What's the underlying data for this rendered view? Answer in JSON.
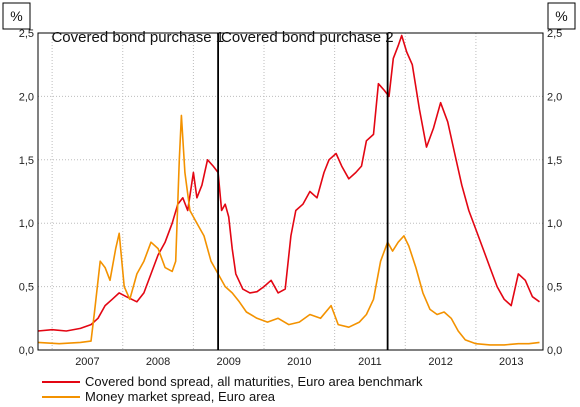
{
  "chart_data": {
    "type": "line",
    "y_unit_left": "%",
    "y_unit_right": "%",
    "xlim": [
      2006.3,
      2013.45
    ],
    "ylim": [
      0,
      2.5
    ],
    "yticks": [
      0,
      0.5,
      1.0,
      1.5,
      2.0,
      2.5
    ],
    "ytick_labels": [
      "0,0",
      "0,5",
      "1,0",
      "1,5",
      "2,0",
      "2,5"
    ],
    "xtick_labels": [
      {
        "label": "2007",
        "x": 2007.0
      },
      {
        "label": "2008",
        "x": 2008.0
      },
      {
        "label": "2009",
        "x": 2009.0
      },
      {
        "label": "2010",
        "x": 2010.0
      },
      {
        "label": "2011",
        "x": 2011.0
      },
      {
        "label": "2012",
        "x": 2012.0
      },
      {
        "label": "2013",
        "x": 2013.0
      }
    ],
    "grid": true,
    "legend_position": "bottom",
    "vertical_markers": [
      {
        "x": 2008.85,
        "label": "Covered bond purchase 1"
      },
      {
        "x": 2011.25,
        "label": "Covered bond purchase 2"
      }
    ],
    "series": [
      {
        "name": "Covered bond spread, all maturities, Euro area benchmark",
        "color": "#e30613",
        "points": [
          [
            2006.3,
            0.15
          ],
          [
            2006.5,
            0.16
          ],
          [
            2006.7,
            0.15
          ],
          [
            2006.9,
            0.17
          ],
          [
            2007.05,
            0.2
          ],
          [
            2007.15,
            0.25
          ],
          [
            2007.25,
            0.35
          ],
          [
            2007.35,
            0.4
          ],
          [
            2007.45,
            0.45
          ],
          [
            2007.55,
            0.42
          ],
          [
            2007.7,
            0.38
          ],
          [
            2007.8,
            0.45
          ],
          [
            2007.9,
            0.6
          ],
          [
            2008.0,
            0.75
          ],
          [
            2008.1,
            0.85
          ],
          [
            2008.2,
            1.0
          ],
          [
            2008.28,
            1.15
          ],
          [
            2008.35,
            1.2
          ],
          [
            2008.42,
            1.1
          ],
          [
            2008.5,
            1.4
          ],
          [
            2008.55,
            1.2
          ],
          [
            2008.62,
            1.3
          ],
          [
            2008.7,
            1.5
          ],
          [
            2008.78,
            1.45
          ],
          [
            2008.85,
            1.4
          ],
          [
            2008.9,
            1.1
          ],
          [
            2008.95,
            1.15
          ],
          [
            2009.0,
            1.05
          ],
          [
            2009.05,
            0.8
          ],
          [
            2009.1,
            0.6
          ],
          [
            2009.2,
            0.48
          ],
          [
            2009.3,
            0.45
          ],
          [
            2009.4,
            0.46
          ],
          [
            2009.5,
            0.5
          ],
          [
            2009.6,
            0.55
          ],
          [
            2009.7,
            0.45
          ],
          [
            2009.8,
            0.48
          ],
          [
            2009.88,
            0.9
          ],
          [
            2009.95,
            1.1
          ],
          [
            2010.05,
            1.15
          ],
          [
            2010.15,
            1.25
          ],
          [
            2010.25,
            1.2
          ],
          [
            2010.35,
            1.4
          ],
          [
            2010.42,
            1.5
          ],
          [
            2010.52,
            1.55
          ],
          [
            2010.6,
            1.45
          ],
          [
            2010.7,
            1.35
          ],
          [
            2010.8,
            1.4
          ],
          [
            2010.88,
            1.45
          ],
          [
            2010.95,
            1.65
          ],
          [
            2011.05,
            1.7
          ],
          [
            2011.12,
            2.1
          ],
          [
            2011.2,
            2.05
          ],
          [
            2011.27,
            2.0
          ],
          [
            2011.33,
            2.3
          ],
          [
            2011.4,
            2.4
          ],
          [
            2011.45,
            2.48
          ],
          [
            2011.52,
            2.35
          ],
          [
            2011.6,
            2.25
          ],
          [
            2011.7,
            1.9
          ],
          [
            2011.8,
            1.6
          ],
          [
            2011.9,
            1.75
          ],
          [
            2012.0,
            1.95
          ],
          [
            2012.1,
            1.8
          ],
          [
            2012.2,
            1.55
          ],
          [
            2012.3,
            1.3
          ],
          [
            2012.4,
            1.1
          ],
          [
            2012.5,
            0.95
          ],
          [
            2012.6,
            0.8
          ],
          [
            2012.7,
            0.65
          ],
          [
            2012.8,
            0.5
          ],
          [
            2012.9,
            0.4
          ],
          [
            2013.0,
            0.35
          ],
          [
            2013.1,
            0.6
          ],
          [
            2013.2,
            0.55
          ],
          [
            2013.3,
            0.42
          ],
          [
            2013.4,
            0.38
          ]
        ]
      },
      {
        "name": "Money market spread, Euro area",
        "color": "#f39200",
        "points": [
          [
            2006.3,
            0.06
          ],
          [
            2006.6,
            0.05
          ],
          [
            2006.9,
            0.06
          ],
          [
            2007.05,
            0.07
          ],
          [
            2007.1,
            0.3
          ],
          [
            2007.18,
            0.7
          ],
          [
            2007.25,
            0.65
          ],
          [
            2007.32,
            0.55
          ],
          [
            2007.4,
            0.8
          ],
          [
            2007.45,
            0.92
          ],
          [
            2007.52,
            0.5
          ],
          [
            2007.6,
            0.4
          ],
          [
            2007.7,
            0.6
          ],
          [
            2007.8,
            0.7
          ],
          [
            2007.9,
            0.85
          ],
          [
            2008.0,
            0.8
          ],
          [
            2008.1,
            0.65
          ],
          [
            2008.2,
            0.62
          ],
          [
            2008.25,
            0.7
          ],
          [
            2008.3,
            1.5
          ],
          [
            2008.33,
            1.85
          ],
          [
            2008.38,
            1.4
          ],
          [
            2008.45,
            1.1
          ],
          [
            2008.55,
            1.0
          ],
          [
            2008.65,
            0.9
          ],
          [
            2008.75,
            0.7
          ],
          [
            2008.85,
            0.6
          ],
          [
            2008.95,
            0.5
          ],
          [
            2009.05,
            0.45
          ],
          [
            2009.15,
            0.38
          ],
          [
            2009.25,
            0.3
          ],
          [
            2009.4,
            0.25
          ],
          [
            2009.55,
            0.22
          ],
          [
            2009.7,
            0.25
          ],
          [
            2009.85,
            0.2
          ],
          [
            2010.0,
            0.22
          ],
          [
            2010.15,
            0.28
          ],
          [
            2010.3,
            0.25
          ],
          [
            2010.45,
            0.35
          ],
          [
            2010.55,
            0.2
          ],
          [
            2010.7,
            0.18
          ],
          [
            2010.85,
            0.22
          ],
          [
            2010.95,
            0.28
          ],
          [
            2011.05,
            0.4
          ],
          [
            2011.15,
            0.7
          ],
          [
            2011.25,
            0.85
          ],
          [
            2011.32,
            0.78
          ],
          [
            2011.4,
            0.85
          ],
          [
            2011.48,
            0.9
          ],
          [
            2011.55,
            0.82
          ],
          [
            2011.65,
            0.65
          ],
          [
            2011.75,
            0.45
          ],
          [
            2011.85,
            0.32
          ],
          [
            2011.95,
            0.28
          ],
          [
            2012.05,
            0.3
          ],
          [
            2012.15,
            0.25
          ],
          [
            2012.25,
            0.15
          ],
          [
            2012.35,
            0.08
          ],
          [
            2012.5,
            0.05
          ],
          [
            2012.7,
            0.04
          ],
          [
            2012.9,
            0.04
          ],
          [
            2013.1,
            0.05
          ],
          [
            2013.25,
            0.05
          ],
          [
            2013.4,
            0.06
          ]
        ]
      }
    ]
  }
}
